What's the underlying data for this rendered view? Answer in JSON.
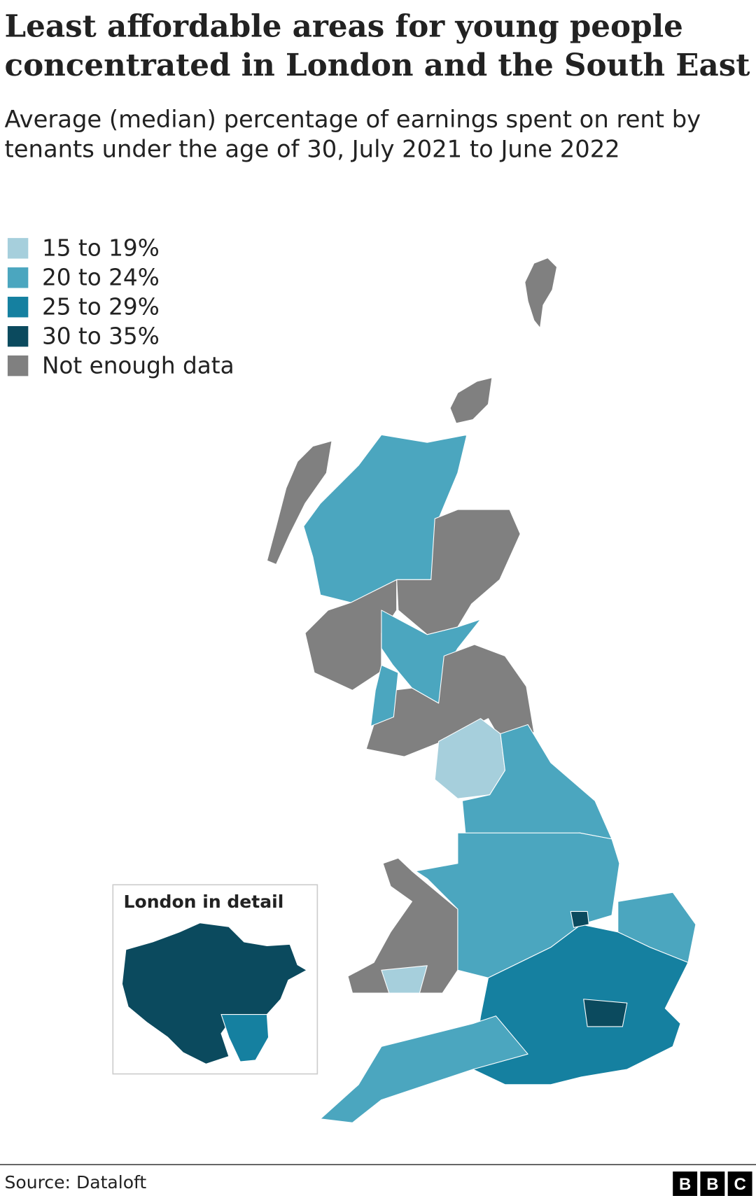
{
  "title": [
    "Least affordable areas for young people",
    "concentrated in London and the South East"
  ],
  "subtitle": [
    "Average (median) percentage of earnings spent on rent by",
    "tenants under the age of 30, July 2021 to June 2022"
  ],
  "legend": {
    "items": [
      {
        "label": "15 to 19%",
        "color": "#a6cfdc"
      },
      {
        "label": "20 to 24%",
        "color": "#4ba6bf"
      },
      {
        "label": "25 to 29%",
        "color": "#1580a0"
      },
      {
        "label": "30 to 35%",
        "color": "#0b4a5e"
      },
      {
        "label": "Not enough data",
        "color": "#808080"
      }
    ]
  },
  "inset": {
    "title": "London in detail"
  },
  "source": "Source: Dataloft",
  "logo": [
    "B",
    "B",
    "C"
  ]
}
